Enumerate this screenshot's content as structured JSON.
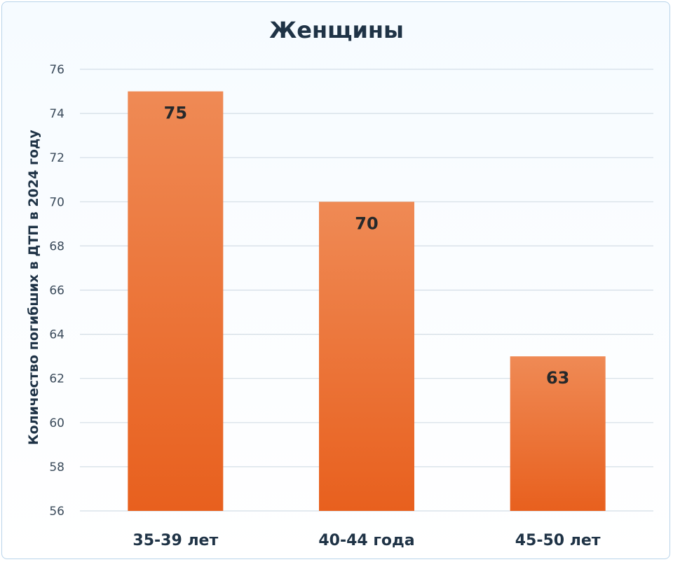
{
  "chart_data": {
    "type": "bar",
    "title": "Женщины",
    "xlabel": "",
    "ylabel": "Количество погибших в ДТП в 2024 году",
    "categories": [
      "35-39 лет",
      "40-44 года",
      "45-50 лет"
    ],
    "values": [
      75,
      70,
      63
    ],
    "data_labels": [
      "75",
      "70",
      "63"
    ],
    "ylim": [
      56,
      76
    ],
    "yticks": [
      "56",
      "58",
      "60",
      "62",
      "64",
      "66",
      "68",
      "70",
      "72",
      "74",
      "76"
    ],
    "grid": true,
    "legend": "none",
    "colors": {
      "bar_top": "#ef8a55",
      "bar_bottom": "#e8601e",
      "grid": "#d3dde6"
    }
  }
}
